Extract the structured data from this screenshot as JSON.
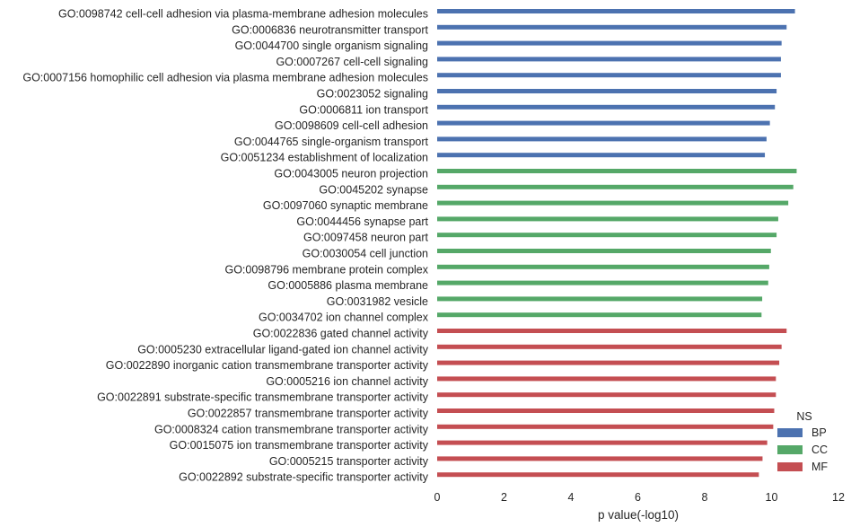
{
  "chart_data": {
    "type": "bar",
    "orientation": "horizontal",
    "title": "",
    "xlabel": "p value(-log10)",
    "ylabel": "",
    "xlim": [
      0,
      12
    ],
    "xticks": [
      0,
      2,
      4,
      6,
      8,
      10,
      12
    ],
    "grid": false,
    "legend": {
      "title": "NS",
      "placement": "bottom-right"
    },
    "series": [
      {
        "name": "BP",
        "color": "#4c72b0"
      },
      {
        "name": "CC",
        "color": "#55a868"
      },
      {
        "name": "MF",
        "color": "#c44e52"
      }
    ],
    "categories": [
      {
        "label": "GO:0098742 cell-cell adhesion via plasma-membrane adhesion molecules",
        "value": 10.7,
        "series": "BP"
      },
      {
        "label": "GO:0006836 neurotransmitter transport",
        "value": 10.45,
        "series": "BP"
      },
      {
        "label": "GO:0044700 single organism signaling",
        "value": 10.3,
        "series": "BP"
      },
      {
        "label": "GO:0007267 cell-cell signaling",
        "value": 10.28,
        "series": "BP"
      },
      {
        "label": "GO:0007156 homophilic cell adhesion via plasma membrane adhesion molecules",
        "value": 10.28,
        "series": "BP"
      },
      {
        "label": "GO:0023052 signaling",
        "value": 10.15,
        "series": "BP"
      },
      {
        "label": "GO:0006811 ion transport",
        "value": 10.1,
        "series": "BP"
      },
      {
        "label": "GO:0098609 cell-cell adhesion",
        "value": 9.95,
        "series": "BP"
      },
      {
        "label": "GO:0044765 single-organism transport",
        "value": 9.85,
        "series": "BP"
      },
      {
        "label": "GO:0051234 establishment of localization",
        "value": 9.8,
        "series": "BP"
      },
      {
        "label": "GO:0043005 neuron projection",
        "value": 10.75,
        "series": "CC"
      },
      {
        "label": "GO:0045202 synapse",
        "value": 10.65,
        "series": "CC"
      },
      {
        "label": "GO:0097060 synaptic membrane",
        "value": 10.5,
        "series": "CC"
      },
      {
        "label": "GO:0044456 synapse part",
        "value": 10.2,
        "series": "CC"
      },
      {
        "label": "GO:0097458 neuron part",
        "value": 10.15,
        "series": "CC"
      },
      {
        "label": "GO:0030054 cell junction",
        "value": 9.98,
        "series": "CC"
      },
      {
        "label": "GO:0098796 membrane protein complex",
        "value": 9.93,
        "series": "CC"
      },
      {
        "label": "GO:0005886 plasma membrane",
        "value": 9.9,
        "series": "CC"
      },
      {
        "label": "GO:0031982 vesicle",
        "value": 9.72,
        "series": "CC"
      },
      {
        "label": "GO:0034702 ion channel complex",
        "value": 9.7,
        "series": "CC"
      },
      {
        "label": "GO:0022836 gated channel activity",
        "value": 10.45,
        "series": "MF"
      },
      {
        "label": "GO:0005230 extracellular ligand-gated ion channel activity",
        "value": 10.3,
        "series": "MF"
      },
      {
        "label": "GO:0022890 inorganic cation transmembrane transporter activity",
        "value": 10.23,
        "series": "MF"
      },
      {
        "label": "GO:0005216 ion channel activity",
        "value": 10.13,
        "series": "MF"
      },
      {
        "label": "GO:0022891 substrate-specific transmembrane transporter activity",
        "value": 10.13,
        "series": "MF"
      },
      {
        "label": "GO:0022857 transmembrane transporter activity",
        "value": 10.08,
        "series": "MF"
      },
      {
        "label": "GO:0008324 cation transmembrane transporter activity",
        "value": 10.05,
        "series": "MF"
      },
      {
        "label": "GO:0015075 ion transmembrane transporter activity",
        "value": 9.87,
        "series": "MF"
      },
      {
        "label": "GO:0005215 transporter activity",
        "value": 9.73,
        "series": "MF"
      },
      {
        "label": "GO:0022892 substrate-specific transporter activity",
        "value": 9.62,
        "series": "MF"
      }
    ]
  }
}
